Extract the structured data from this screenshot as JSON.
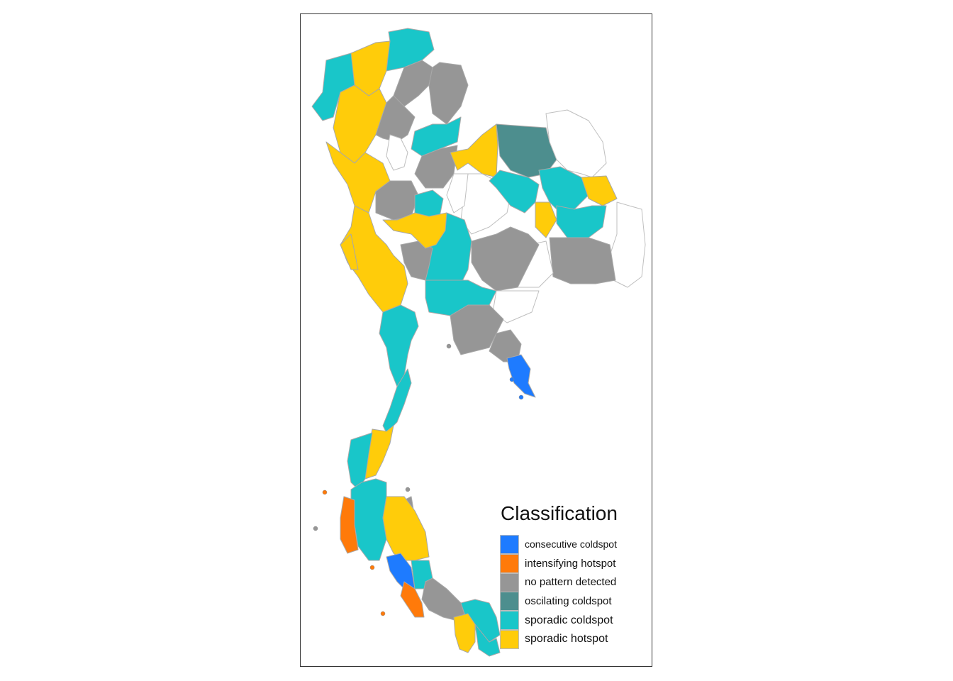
{
  "legend": {
    "title": "Classification",
    "items": [
      {
        "label": "consecutive coldspot",
        "color": "#1e7bff"
      },
      {
        "label": "intensifying hotspot",
        "color": "#ff7a0a"
      },
      {
        "label": "no pattern detected",
        "color": "#969696"
      },
      {
        "label": "oscilating coldspot",
        "color": "#4d8e8e"
      },
      {
        "label": "sporadic coldspot",
        "color": "#19c6c9"
      },
      {
        "label": "sporadic hotspot",
        "color": "#ffcc0a"
      }
    ]
  },
  "map": {
    "outline_color": "#bfbfbf",
    "no_data_fill": "#ffffff"
  }
}
